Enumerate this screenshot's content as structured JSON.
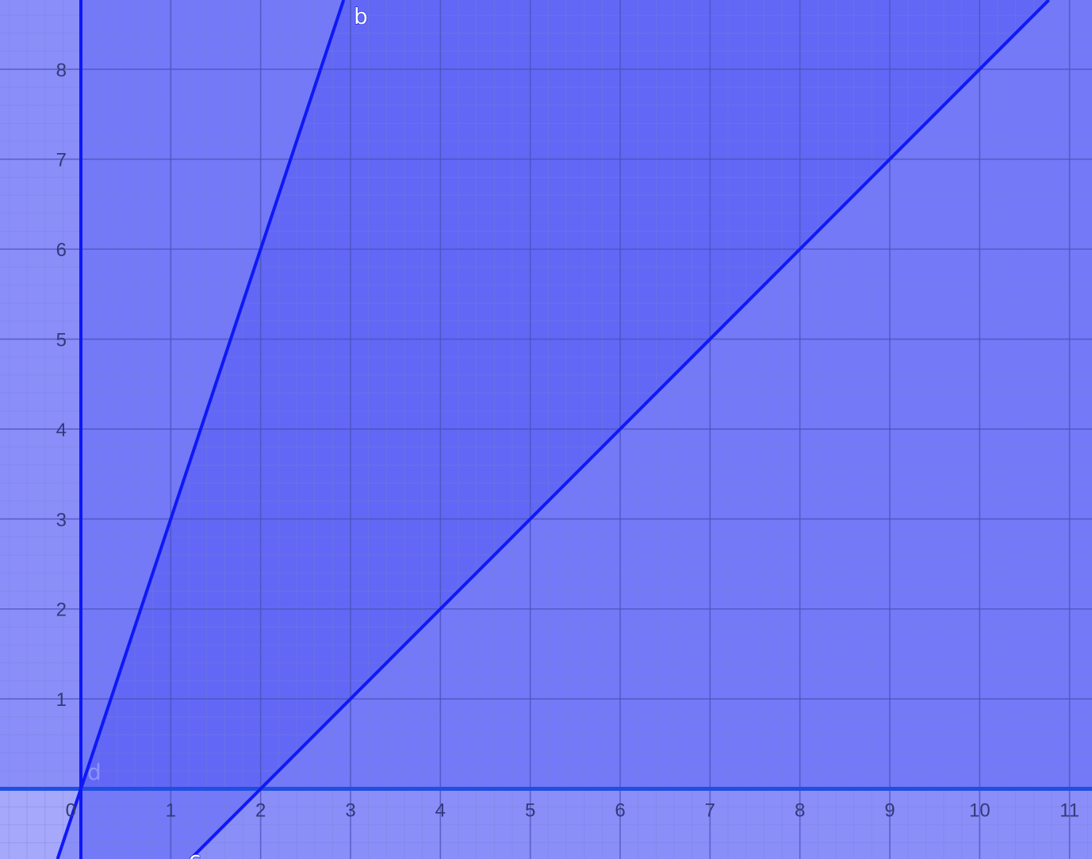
{
  "chart_data": {
    "type": "line",
    "title": "",
    "xlabel": "",
    "ylabel": "",
    "xlim": [
      -0.9,
      11.25
    ],
    "ylim": [
      -0.78,
      8.77
    ],
    "grid": true,
    "x_ticks": [
      "1",
      "2",
      "3",
      "4",
      "5",
      "6",
      "7",
      "8",
      "9",
      "10",
      "11"
    ],
    "y_ticks": [
      "1",
      "2",
      "3",
      "4",
      "5",
      "6",
      "7",
      "8"
    ],
    "origin_label": "0",
    "series": [
      {
        "name": "b",
        "kind": "line",
        "slope": 3,
        "intercept": 0,
        "note": "y = 3x"
      },
      {
        "name": "c",
        "kind": "line",
        "slope": 1,
        "intercept": -2,
        "note": "y = x - 2"
      },
      {
        "name": "d",
        "kind": "vertical",
        "x": 0,
        "note": "x = 0"
      },
      {
        "name": "x-axis",
        "kind": "horizontal",
        "y": 0,
        "note": "y = 0"
      }
    ],
    "shaded_regions": [
      {
        "name": "x >= 0",
        "bound": "d"
      },
      {
        "name": "y >= 0",
        "bound": "x-axis"
      },
      {
        "name": "y <= 3x",
        "bound": "b"
      },
      {
        "name": "y >= x - 2",
        "bound": "c"
      }
    ],
    "labels": {
      "b": "b",
      "c": "c",
      "d": "d"
    },
    "colors": {
      "background": "#c8c8ff",
      "shade": "#1f26f0",
      "line": "#0f18f5",
      "axis_x": "#1f4fe0",
      "grid_major": "#4a52b8",
      "grid_minor": "#7a80d0",
      "tick_text": "#333a78"
    }
  }
}
